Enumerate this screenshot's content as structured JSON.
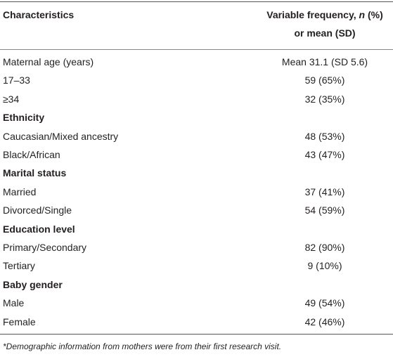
{
  "table": {
    "header": [
      "Characteristics",
      {
        "line1": [
          "Variable frequency, ",
          "n",
          " (%)"
        ],
        "line2": "or mean (SD)"
      }
    ],
    "rows": [
      [
        "Maternal age (years)",
        "Mean 31.1 (SD 5.6)"
      ],
      [
        "17–33",
        "59 (65%)"
      ],
      [
        "≥34",
        "32 (35%)"
      ],
      [
        "Ethnicity"
      ],
      [
        "Caucasian/Mixed ancestry",
        "48 (53%)"
      ],
      [
        "Black/African",
        "43 (47%)"
      ],
      [
        "Marital status"
      ],
      [
        "Married",
        "37 (41%)"
      ],
      [
        "Divorced/Single",
        "54 (59%)"
      ],
      [
        "Education level"
      ],
      [
        "Primary/Secondary",
        "82 (90%)"
      ],
      [
        "Tertiary",
        "9 (10%)"
      ],
      [
        "Baby gender"
      ],
      [
        "Male",
        "49 (54%)"
      ],
      [
        "Female",
        "42 (46%)"
      ]
    ],
    "footnote": "*Demographic information from mothers were from their first research visit."
  }
}
